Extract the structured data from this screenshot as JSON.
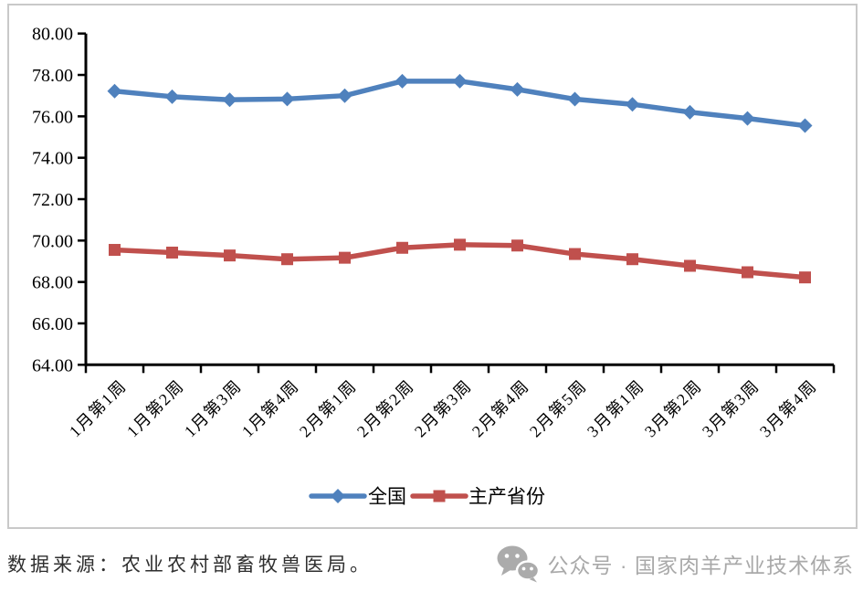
{
  "chart_data": {
    "type": "line",
    "title": "",
    "categories": [
      "1月第1周",
      "1月第2周",
      "1月第3周",
      "1月第4周",
      "2月第1周",
      "2月第2周",
      "2月第3周",
      "2月第4周",
      "2月第5周",
      "3月第1周",
      "3月第2周",
      "3月第3周",
      "3月第4周"
    ],
    "series": [
      {
        "name": "全国",
        "slug": "national",
        "color": "#4F81BD",
        "marker": "diamond",
        "values": [
          77.22,
          76.95,
          76.8,
          76.84,
          77.0,
          77.7,
          77.7,
          77.3,
          76.83,
          76.58,
          76.2,
          75.9,
          75.55
        ]
      },
      {
        "name": "主产省份",
        "slug": "provinces",
        "color": "#C0504D",
        "marker": "square",
        "values": [
          69.55,
          69.42,
          69.28,
          69.1,
          69.17,
          69.65,
          69.8,
          69.76,
          69.35,
          69.1,
          68.78,
          68.47,
          68.22
        ]
      }
    ],
    "xlabel": "",
    "ylabel": "",
    "ylim": [
      64,
      80
    ],
    "ytick_step": 2,
    "ytick_decimals": 2,
    "grid": false,
    "legend_position": "bottom-center",
    "axis_color": "#000000"
  },
  "footer": {
    "source_note": "数据来源：农业农村部畜牧兽医局。",
    "watermark_text": "公众号 · 国家肉羊产业技术体系",
    "watermark_icon": "wechat-icon",
    "watermark_color": "#a9a9a9"
  }
}
